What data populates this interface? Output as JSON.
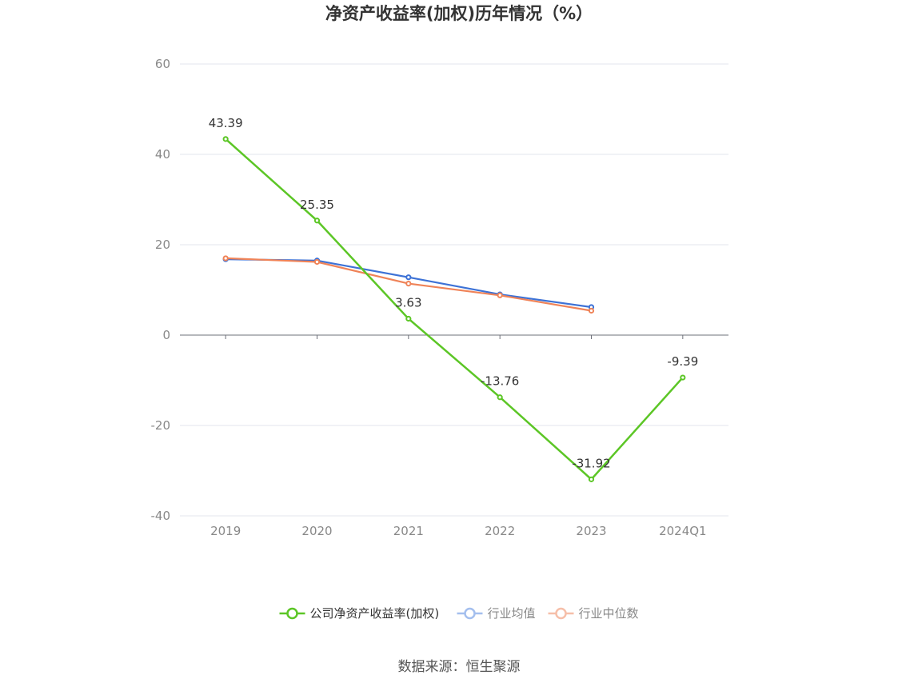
{
  "chart_data": {
    "type": "line",
    "title": "净资产收益率(加权)历年情况（%）",
    "categories": [
      "2019",
      "2020",
      "2021",
      "2022",
      "2023",
      "2024Q1"
    ],
    "ylim": [
      -40,
      60
    ],
    "yticks": [
      "60",
      "40",
      "20",
      "0",
      "-20",
      "-40"
    ],
    "grid": true,
    "legend_position": "bottom",
    "series": [
      {
        "name": "公司净资产收益率(加权)",
        "color": "#5cc626",
        "values": [
          43.39,
          25.35,
          3.63,
          -13.76,
          -31.92,
          -9.39
        ],
        "labels": [
          "43.39",
          "25.35",
          "3.63",
          "-13.76",
          "-31.92",
          "-9.39"
        ]
      },
      {
        "name": "行业均值",
        "color": "#3d72d6",
        "legend_color": "#a4bfee",
        "values": [
          16.8,
          16.5,
          12.8,
          9.0,
          6.2,
          null
        ]
      },
      {
        "name": "行业中位数",
        "color": "#ef8358",
        "legend_color": "#f6bfa9",
        "values": [
          17.0,
          16.2,
          11.4,
          8.8,
          5.4,
          null
        ]
      }
    ]
  },
  "source_text": "数据来源：恒生聚源"
}
